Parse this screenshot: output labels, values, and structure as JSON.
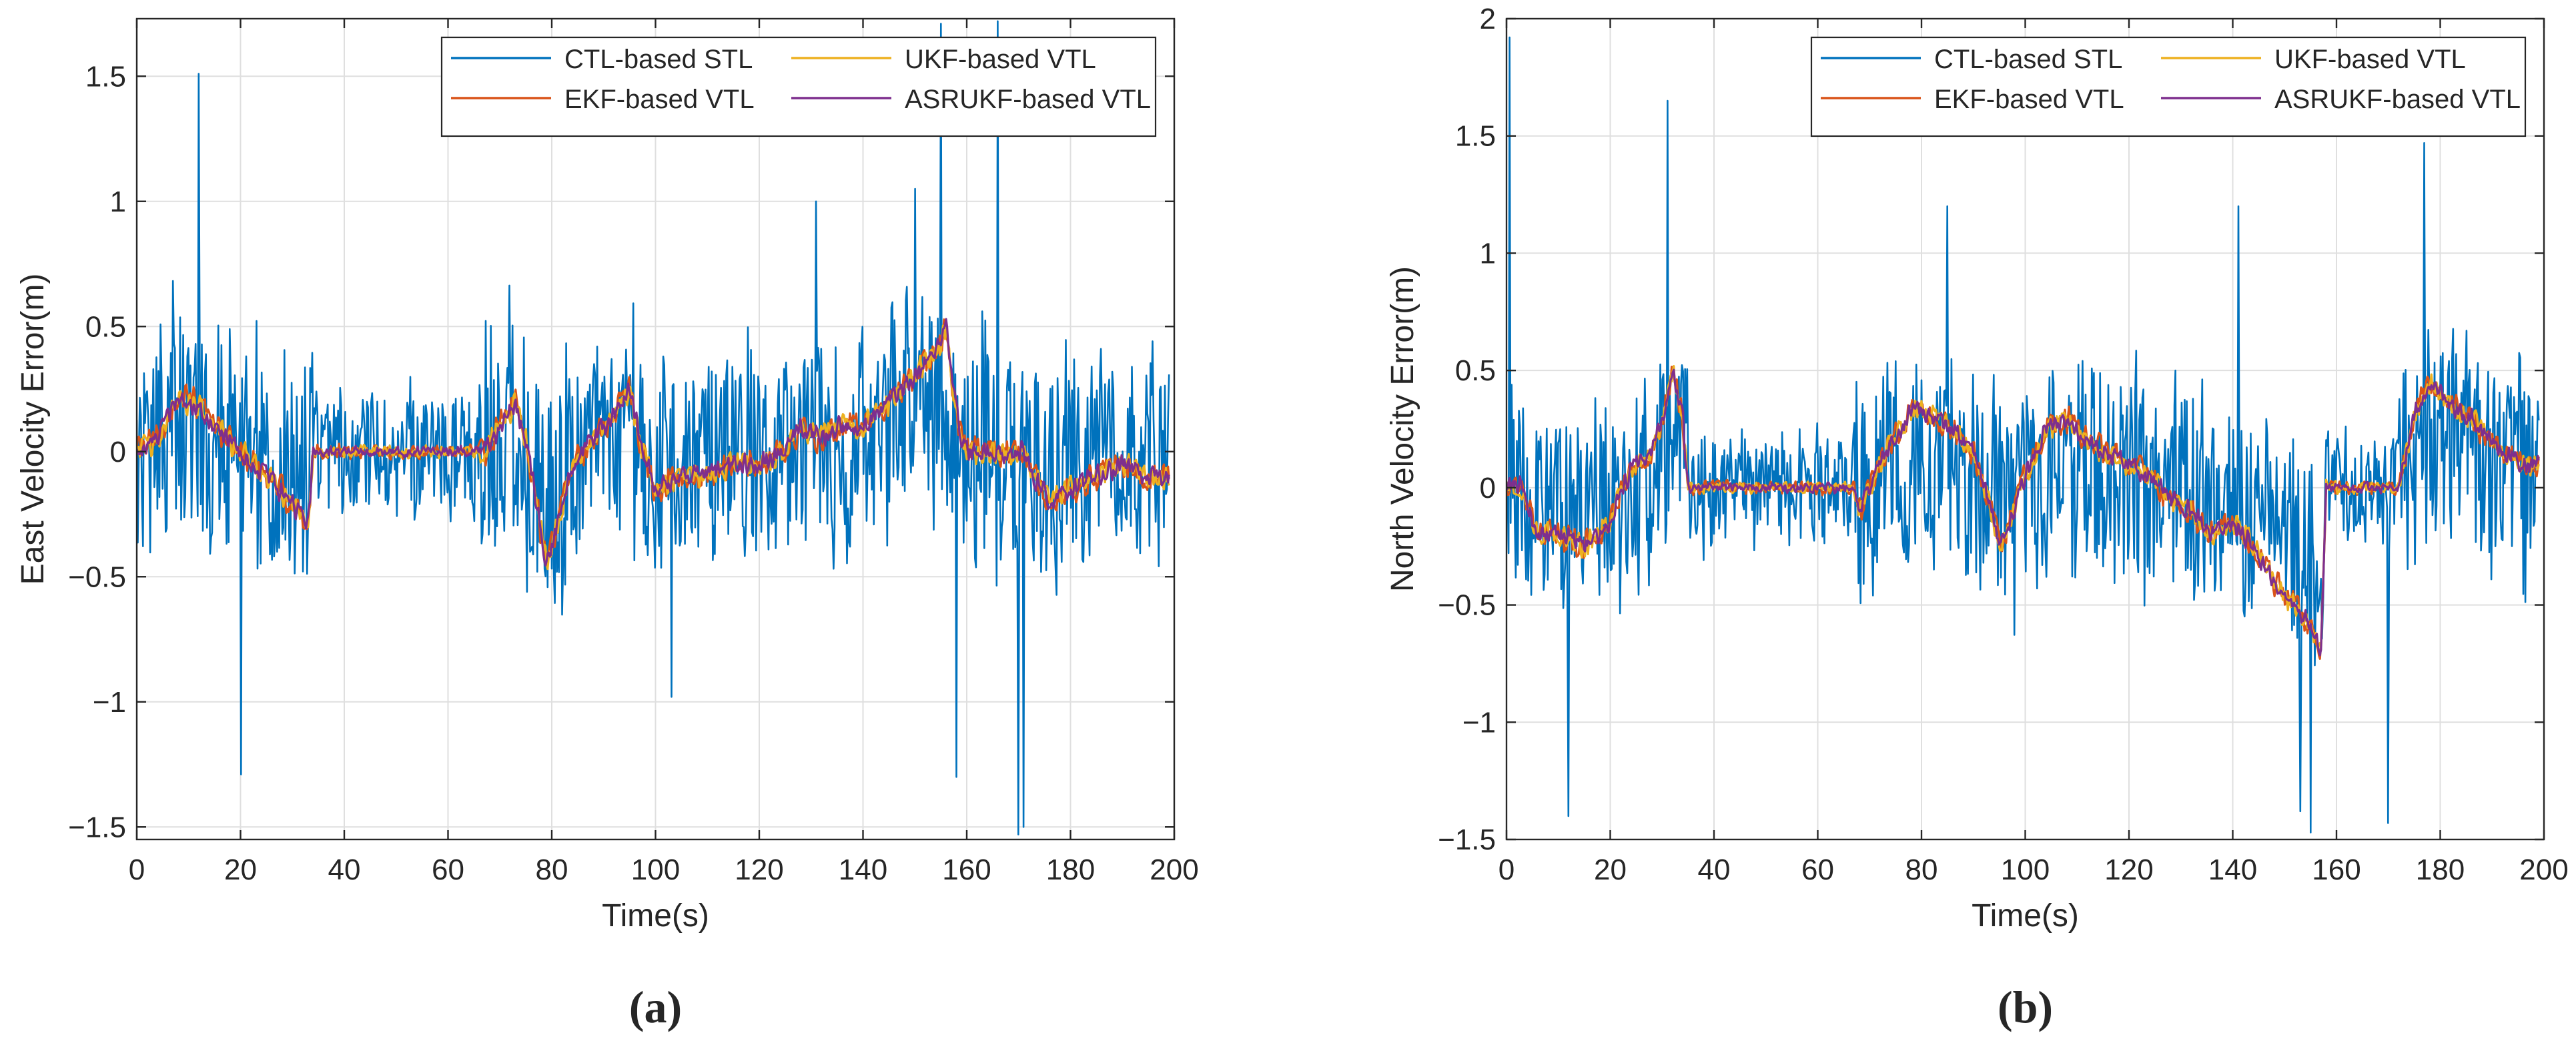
{
  "chart_data": [
    {
      "type": "line",
      "panel_label": "(a)",
      "title": "",
      "xlabel": "Time(s)",
      "ylabel": "East Velocity Error(m)",
      "xlim": [
        0,
        200
      ],
      "ylim": [
        -1.55,
        1.73
      ],
      "xticks": [
        0,
        20,
        40,
        60,
        80,
        100,
        120,
        140,
        160,
        180,
        200
      ],
      "yticks": [
        -1.5,
        -1,
        -0.5,
        0,
        0.5,
        1,
        1.5
      ],
      "grid": true,
      "legend": "top-right",
      "series": [
        {
          "name": "CTL-based STL",
          "color": "#0072BD",
          "kind": "noisy",
          "noise_amp": 0.38
        },
        {
          "name": "EKF-based VTL",
          "color": "#D95319",
          "kind": "smooth",
          "noise_amp": 0.07
        },
        {
          "name": "UKF-based VTL",
          "color": "#EDB120",
          "kind": "smooth",
          "noise_amp": 0.06
        },
        {
          "name": "ASRUKF-based VTL",
          "color": "#7E2F8E",
          "kind": "smooth",
          "noise_amp": 0.05
        }
      ],
      "trend": {
        "x": [
          0,
          4,
          8,
          12,
          15,
          20,
          25,
          30,
          33,
          34,
          66,
          67,
          70,
          73,
          75,
          77,
          79,
          81,
          84,
          88,
          92,
          95,
          97,
          100,
          105,
          110,
          115,
          120,
          125,
          128,
          132,
          135,
          140,
          145,
          150,
          154,
          156,
          157,
          159,
          160,
          170,
          171,
          173,
          176,
          180,
          185,
          190,
          195,
          199
        ],
        "y": [
          0,
          0.05,
          0.22,
          0.18,
          0.1,
          0.0,
          -0.1,
          -0.2,
          -0.3,
          0,
          0,
          0,
          0.1,
          0.2,
          0.05,
          -0.2,
          -0.45,
          -0.3,
          -0.05,
          0.05,
          0.15,
          0.25,
          0.05,
          -0.15,
          -0.1,
          -0.1,
          -0.05,
          -0.05,
          0.0,
          0.1,
          0.05,
          0.1,
          0.1,
          0.2,
          0.3,
          0.4,
          0.5,
          0.3,
          0.05,
          0.0,
          0.0,
          0.0,
          -0.1,
          -0.2,
          -0.15,
          -0.1,
          -0.05,
          -0.1,
          -0.1
        ]
      },
      "quiet": [
        [
          34,
          66
        ]
      ],
      "spikes": [
        [
          12,
          1.51
        ],
        [
          20,
          -1.29
        ],
        [
          155,
          1.71
        ],
        [
          166,
          1.72
        ],
        [
          170,
          -1.53
        ],
        [
          171,
          -1.5
        ],
        [
          131,
          1.0
        ],
        [
          150,
          1.05
        ],
        [
          103,
          -0.98
        ],
        [
          158,
          -1.3
        ]
      ]
    },
    {
      "type": "line",
      "panel_label": "(b)",
      "title": "",
      "xlabel": "Time(s)",
      "ylabel": "North Velocity Error(m)",
      "xlim": [
        0,
        200
      ],
      "ylim": [
        -1.5,
        2
      ],
      "xticks": [
        0,
        20,
        40,
        60,
        80,
        100,
        120,
        140,
        160,
        180,
        200
      ],
      "yticks": [
        -1.5,
        -1,
        -0.5,
        0,
        0.5,
        1,
        1.5,
        2
      ],
      "grid": true,
      "legend": "top-right",
      "series": [
        {
          "name": "CTL-based STL",
          "color": "#0072BD",
          "kind": "noisy",
          "noise_amp": 0.38
        },
        {
          "name": "EKF-based VTL",
          "color": "#D95319",
          "kind": "smooth",
          "noise_amp": 0.07
        },
        {
          "name": "UKF-based VTL",
          "color": "#EDB120",
          "kind": "smooth",
          "noise_amp": 0.06
        },
        {
          "name": "ASRUKF-based VTL",
          "color": "#7E2F8E",
          "kind": "smooth",
          "noise_amp": 0.05
        }
      ],
      "trend": {
        "x": [
          0,
          3,
          6,
          10,
          15,
          20,
          22,
          25,
          28,
          30,
          32,
          34,
          35,
          67,
          68,
          70,
          73,
          76,
          79,
          82,
          86,
          90,
          93,
          95,
          97,
          100,
          104,
          108,
          112,
          116,
          120,
          124,
          128,
          132,
          136,
          140,
          144,
          148,
          152,
          155,
          157,
          158,
          172,
          173,
          175,
          178,
          182,
          186,
          190,
          195,
          199
        ],
        "y": [
          0,
          0,
          -0.2,
          -0.2,
          -0.25,
          -0.15,
          0.0,
          0.1,
          0.15,
          0.3,
          0.5,
          0.3,
          0.0,
          0.0,
          -0.1,
          0.0,
          0.15,
          0.25,
          0.35,
          0.3,
          0.25,
          0.15,
          -0.05,
          -0.25,
          -0.15,
          0.05,
          0.25,
          0.3,
          0.2,
          0.15,
          0.1,
          0.05,
          -0.05,
          -0.1,
          -0.2,
          -0.15,
          -0.25,
          -0.4,
          -0.5,
          -0.6,
          -0.7,
          0.0,
          0.0,
          0.1,
          0.3,
          0.45,
          0.35,
          0.3,
          0.2,
          0.1,
          0.1
        ]
      },
      "quiet": [
        [
          35,
          67
        ],
        [
          158,
          172
        ]
      ],
      "spikes": [
        [
          0.5,
          1.92
        ],
        [
          31,
          1.65
        ],
        [
          155,
          -1.47
        ],
        [
          153,
          -1.38
        ],
        [
          170,
          -1.43
        ],
        [
          12,
          -1.4
        ],
        [
          177,
          1.47
        ],
        [
          85,
          1.2
        ],
        [
          141,
          1.2
        ]
      ]
    }
  ]
}
